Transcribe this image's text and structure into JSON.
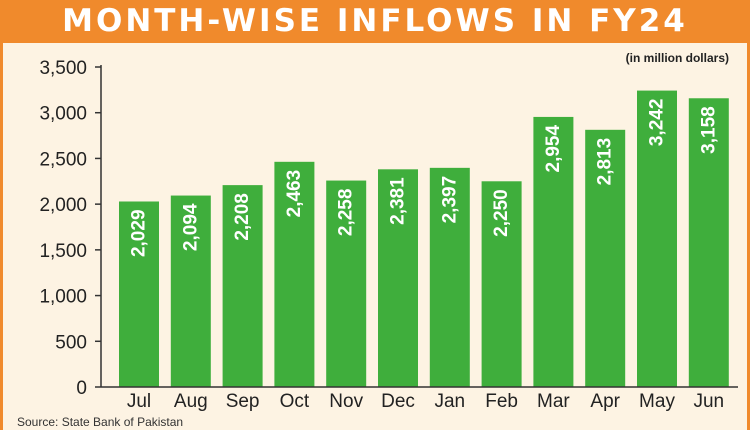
{
  "title": "MONTH-WISE INFLOWS IN FY24",
  "unit_note": "(in million dollars)",
  "source": "Source: State Bank of Pakistan",
  "colors": {
    "header": "#f08a2c",
    "background": "#fdf3e3",
    "bar": "#3fae3c",
    "bar_label": "#ffffff",
    "axis": "#333333"
  },
  "chart_data": {
    "type": "bar",
    "title": "MONTH-WISE INFLOWS IN FY24",
    "xlabel": "",
    "ylabel": "",
    "ylim": [
      0,
      3500
    ],
    "yticks": [
      "0",
      "500",
      "1,000",
      "1,500",
      "2,000",
      "2,500",
      "3,000",
      "3,500"
    ],
    "grid": false,
    "categories": [
      "Jul",
      "Aug",
      "Sep",
      "Oct",
      "Nov",
      "Dec",
      "Jan",
      "Feb",
      "Mar",
      "Apr",
      "May",
      "Jun"
    ],
    "values": [
      2029,
      2094,
      2208,
      2463,
      2258,
      2381,
      2397,
      2250,
      2954,
      2813,
      3242,
      3158
    ],
    "value_labels": [
      "2,029",
      "2,094",
      "2,208",
      "2,463",
      "2,258",
      "2,381",
      "2,397",
      "2,250",
      "2,954",
      "2,813",
      "3,242",
      "3,158"
    ]
  }
}
